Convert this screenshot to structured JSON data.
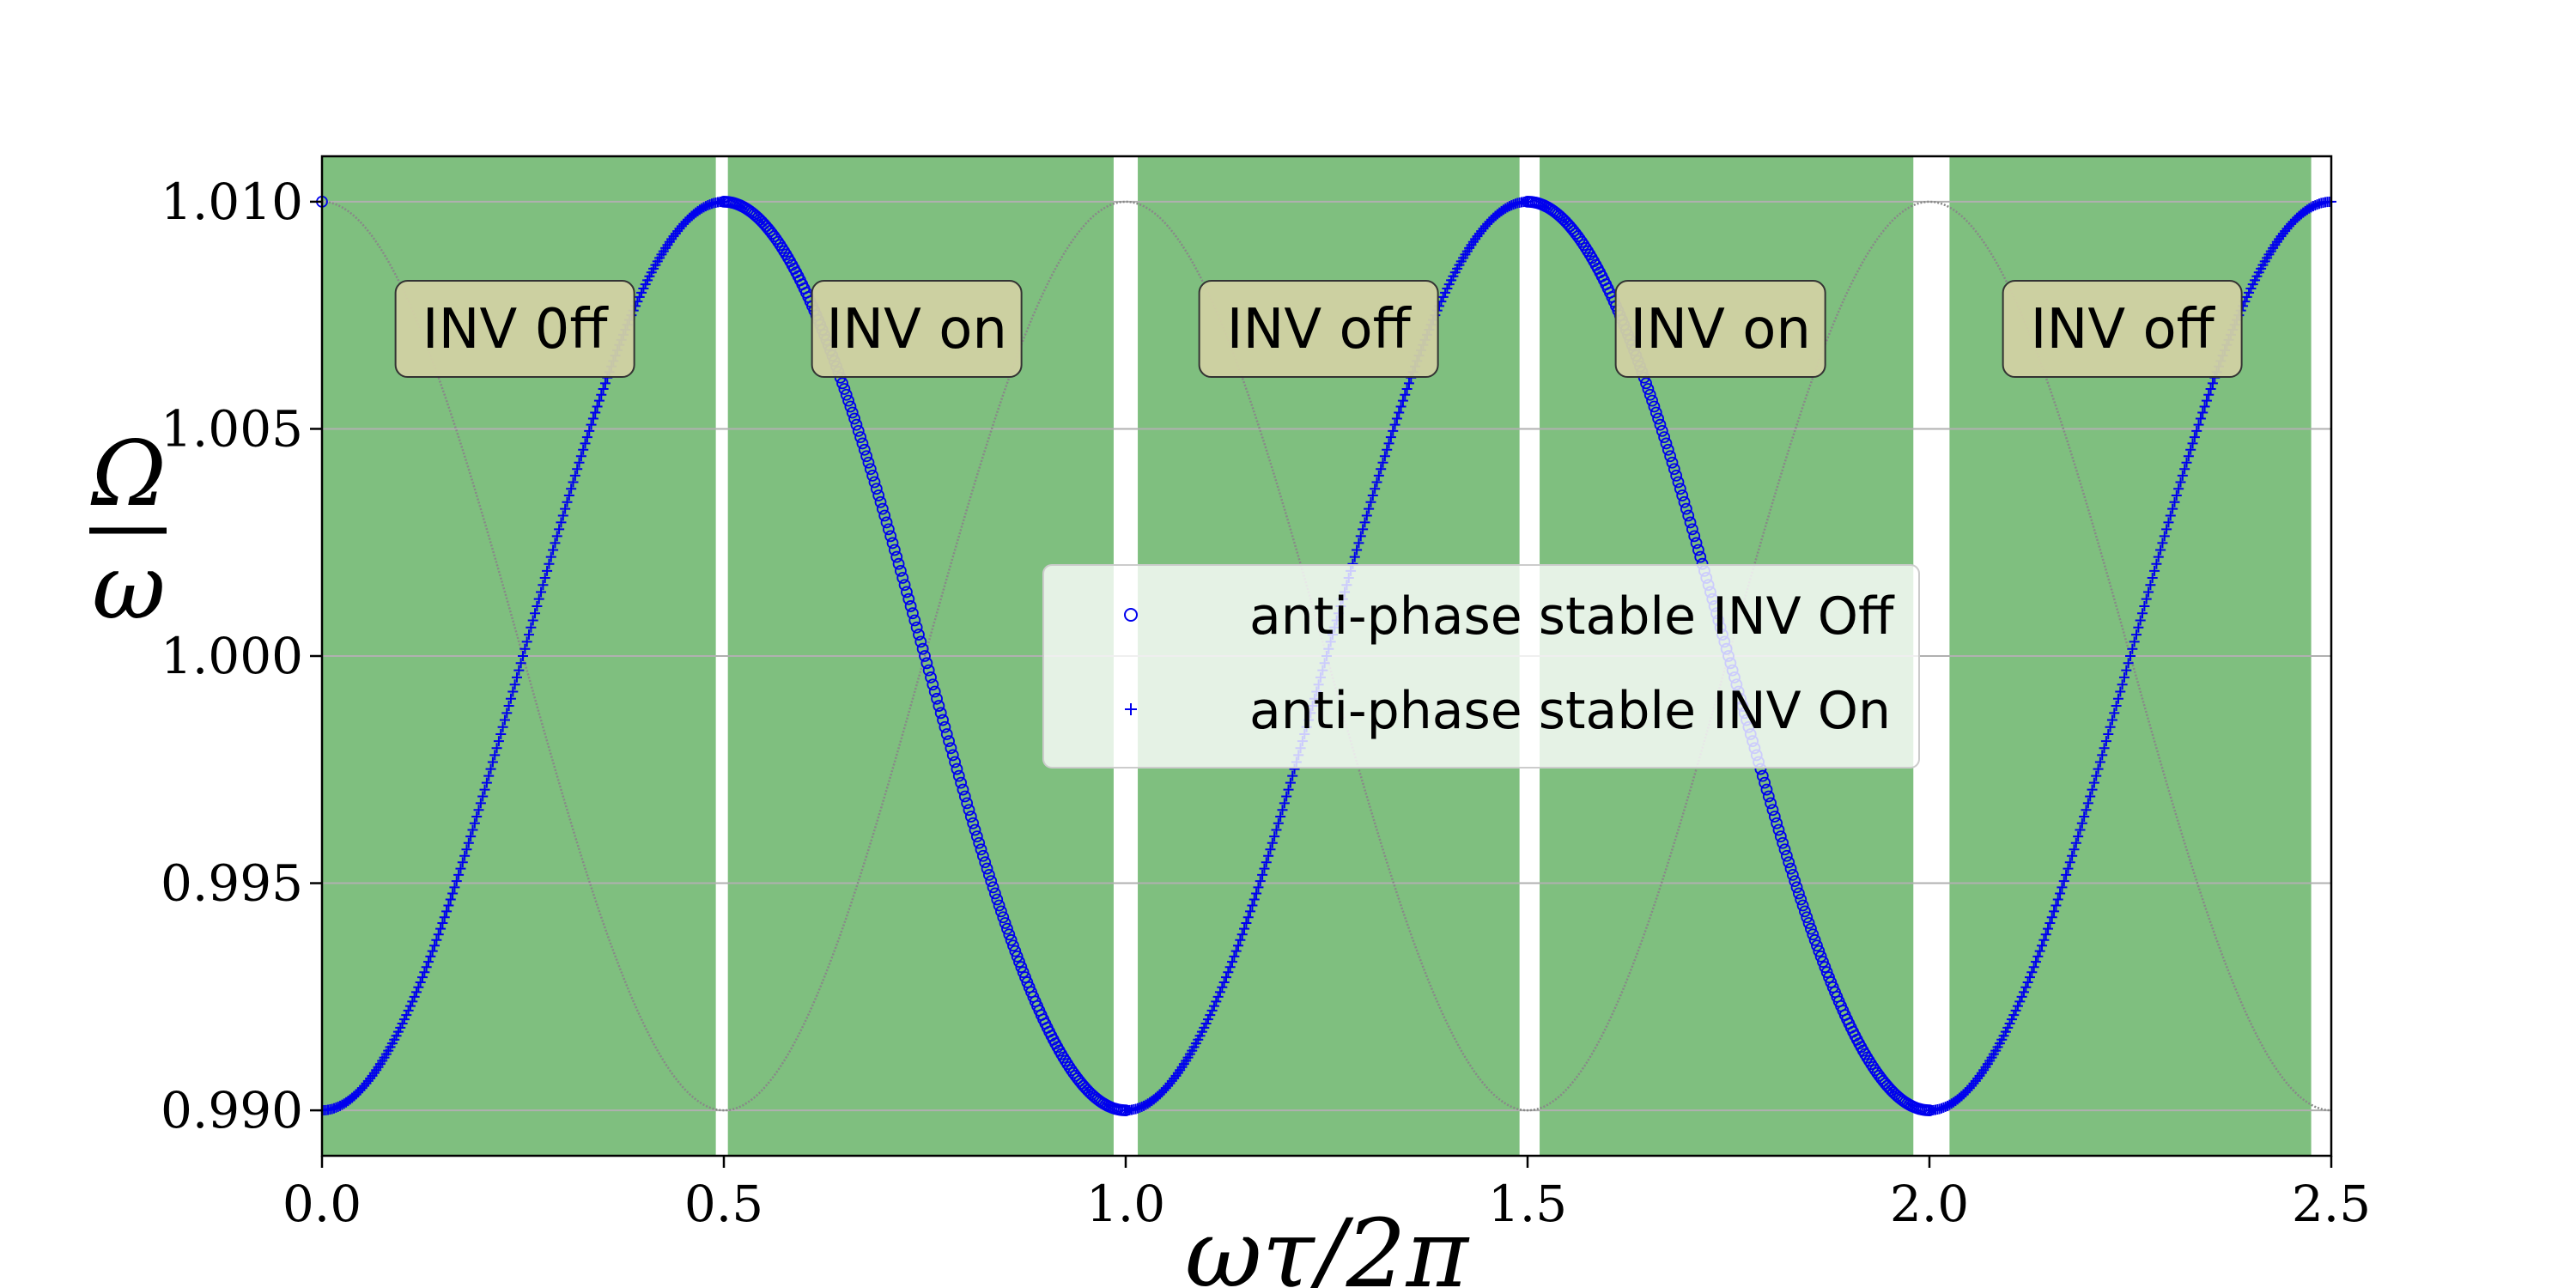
{
  "chart_data": {
    "type": "scatter",
    "xlabel": "ωτ/2π",
    "ylabel_numerator": "Ω",
    "ylabel_denominator": "ω",
    "xlim": [
      0.0,
      2.5
    ],
    "ylim": [
      0.989,
      1.011
    ],
    "x_ticks": [
      0.0,
      0.5,
      1.0,
      1.5,
      2.0,
      2.5
    ],
    "x_tick_labels": [
      "0.0",
      "0.5",
      "1.0",
      "1.5",
      "2.0",
      "2.5"
    ],
    "y_ticks": [
      0.99,
      0.995,
      1.0,
      1.005,
      1.01
    ],
    "y_tick_labels": [
      "0.990",
      "0.995",
      "1.000",
      "1.005",
      "1.010"
    ],
    "grid": true,
    "legend_position": "center-right",
    "series": [
      {
        "name": "anti-phase stable INV Off",
        "marker": "circle",
        "color": "#0000ee",
        "segments": [
          [
            0.0,
            0.0
          ],
          [
            0.5,
            1.0
          ],
          [
            1.0,
            1.0
          ],
          [
            1.5,
            2.0
          ]
        ],
        "function": "Omega/omega = 1 - 0.01*cos(2*pi*x)"
      },
      {
        "name": "anti-phase stable INV On",
        "marker": "plus",
        "color": "#0000ee",
        "segments": [
          [
            0.0,
            0.5
          ],
          [
            1.0,
            1.5
          ],
          [
            2.0,
            2.5
          ]
        ],
        "function": "Omega/omega = 1 - 0.01*cos(2*pi*x)"
      }
    ],
    "reference_curve": {
      "color": "#888888",
      "function": "Omega/omega = 1 + 0.01*cos(2*pi*x)",
      "x_range": [
        0.0,
        2.5
      ]
    },
    "shaded_regions": [
      {
        "x0": 0.0,
        "x1": 0.49,
        "color": "#008000",
        "alpha": 0.5
      },
      {
        "x0": 0.505,
        "x1": 0.985,
        "color": "#008000",
        "alpha": 0.5
      },
      {
        "x0": 1.015,
        "x1": 1.49,
        "color": "#008000",
        "alpha": 0.5
      },
      {
        "x0": 1.515,
        "x1": 1.98,
        "color": "#008000",
        "alpha": 0.5
      },
      {
        "x0": 2.025,
        "x1": 2.475,
        "color": "#008000",
        "alpha": 0.5
      }
    ],
    "annotations": [
      {
        "text": "INV 0ff",
        "x": 0.24,
        "y": 1.0072
      },
      {
        "text": "INV on",
        "x": 0.74,
        "y": 1.0072
      },
      {
        "text": "INV off",
        "x": 1.24,
        "y": 1.0072
      },
      {
        "text": "INV on",
        "x": 1.74,
        "y": 1.0072
      },
      {
        "text": "INV off",
        "x": 2.24,
        "y": 1.0072
      }
    ],
    "annotation_box_color": "#d1d1a3"
  }
}
